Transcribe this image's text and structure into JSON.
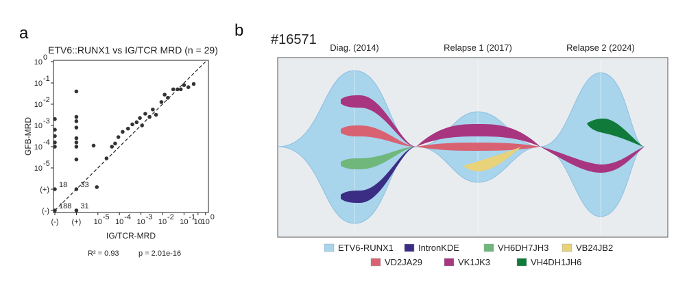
{
  "panel_a_label": "a",
  "panel_b_label": "b",
  "chart_data": [
    {
      "type": "scatter",
      "title": "ETV6::RUNX1 vs IG/TCR MRD (n = 29)",
      "xlabel": "IG/TCR-MRD",
      "ylabel": "GFB-MRD",
      "x_ticks": [
        "(-)",
        "(+)",
        "10",
        "10",
        "10",
        "10",
        "10",
        "10",
        "10"
      ],
      "x_tick_exps": [
        "",
        "",
        "-5",
        "-4",
        "-3",
        "-2",
        "-1",
        "",
        "0"
      ],
      "y_ticks": [
        "(-)",
        "(+)",
        "10",
        "10",
        "10",
        "10",
        "10",
        "10"
      ],
      "y_tick_exps": [
        "",
        "",
        "-5",
        "-4",
        "-3",
        "-2",
        "-1",
        "0"
      ],
      "xlim": [
        -7,
        0
      ],
      "ylim": [
        -7,
        0
      ],
      "points": [
        {
          "x": -7,
          "y": -2.7
        },
        {
          "x": -7,
          "y": -3.2
        },
        {
          "x": -7,
          "y": -3.5
        },
        {
          "x": -7,
          "y": -3.8
        },
        {
          "x": -7,
          "y": -4.0
        },
        {
          "x": -6,
          "y": -1.4
        },
        {
          "x": -6,
          "y": -2.6
        },
        {
          "x": -6,
          "y": -2.8
        },
        {
          "x": -6,
          "y": -3.1
        },
        {
          "x": -6,
          "y": -3.6
        },
        {
          "x": -6,
          "y": -3.8
        },
        {
          "x": -6,
          "y": -4.0
        },
        {
          "x": -6,
          "y": -4.6
        },
        {
          "x": -5.2,
          "y": -3.95
        },
        {
          "x": -5.05,
          "y": -5.9
        },
        {
          "x": -4.6,
          "y": -4.55
        },
        {
          "x": -4.35,
          "y": -4.0
        },
        {
          "x": -4.2,
          "y": -3.85
        },
        {
          "x": -4.05,
          "y": -3.55
        },
        {
          "x": -3.85,
          "y": -3.3
        },
        {
          "x": -3.6,
          "y": -3.15
        },
        {
          "x": -3.4,
          "y": -2.95
        },
        {
          "x": -3.2,
          "y": -2.85
        },
        {
          "x": -3.05,
          "y": -2.65
        },
        {
          "x": -2.95,
          "y": -3.0
        },
        {
          "x": -2.8,
          "y": -2.45
        },
        {
          "x": -2.6,
          "y": -2.6
        },
        {
          "x": -2.45,
          "y": -2.25
        },
        {
          "x": -2.3,
          "y": -2.5
        },
        {
          "x": -2.05,
          "y": -1.9
        },
        {
          "x": -1.9,
          "y": -1.55
        },
        {
          "x": -1.75,
          "y": -1.7
        },
        {
          "x": -1.5,
          "y": -1.3
        },
        {
          "x": -1.3,
          "y": -1.3
        },
        {
          "x": -1.15,
          "y": -1.3
        },
        {
          "x": -1.0,
          "y": -1.1
        },
        {
          "x": -0.8,
          "y": -1.2
        },
        {
          "x": -0.55,
          "y": -1.05
        }
      ],
      "annotations": [
        {
          "text": "18",
          "x": -7,
          "y": -6
        },
        {
          "text": "33",
          "x": -6,
          "y": -6
        },
        {
          "text": "188",
          "x": -7,
          "y": -7
        },
        {
          "text": "31",
          "x": -6,
          "y": -7
        }
      ],
      "stats": {
        "r2": "R² = 0.93",
        "p": "p = 2.01e-16"
      }
    },
    {
      "type": "area",
      "subtitle": "#16571",
      "timepoints": [
        "Diag. (2014)",
        "Relapse 1 (2017)",
        "Relapse 2 (2024)"
      ],
      "series": [
        {
          "name": "ETV6-RUNX1",
          "color": "#a8d4ec",
          "values": [
            100,
            50,
            100
          ]
        },
        {
          "name": "IntronKDE",
          "color": "#3b2d84",
          "values": [
            12,
            0,
            0
          ]
        },
        {
          "name": "VH6DH7JH3",
          "color": "#6fb77a",
          "values": [
            10,
            0,
            0
          ]
        },
        {
          "name": "VB24JB2",
          "color": "#e8d27a",
          "values": [
            0,
            10,
            0
          ]
        },
        {
          "name": "VD2JA29",
          "color": "#d96272",
          "values": [
            12,
            8,
            0
          ]
        },
        {
          "name": "VK1JK3",
          "color": "#a8357f",
          "values": [
            14,
            14,
            16
          ]
        },
        {
          "name": "VH4DH1JH6",
          "color": "#0f7a3a",
          "values": [
            0,
            0,
            16
          ]
        }
      ]
    }
  ]
}
